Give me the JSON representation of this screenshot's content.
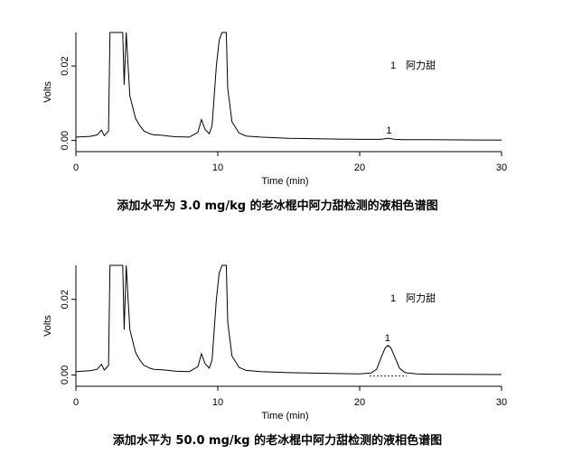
{
  "chart_data": [
    {
      "type": "line",
      "title": "",
      "caption": "添加水平为 3.0 mg/kg 的老冰棍中阿力甜检测的液相色谱图",
      "xlabel": "Time (min)",
      "ylabel": "Volts",
      "xlim": [
        0,
        30
      ],
      "ylim": [
        -0.003,
        0.029
      ],
      "xticks": [
        "0",
        "10",
        "20",
        "30"
      ],
      "yticks": [
        "0.00",
        "0.02"
      ],
      "legend": {
        "number": "1",
        "name": "阿力甜"
      },
      "peak_label": "1",
      "series": [
        {
          "x": [
            0,
            1,
            1.5,
            1.8,
            2.0,
            2.3,
            2.4,
            3.3,
            3.4,
            3.55,
            3.65,
            3.8,
            4.2,
            4.5,
            4.8,
            5.0,
            5.2,
            5.5,
            6.0,
            6.5,
            7.0,
            8.0,
            8.6,
            8.85,
            9.1,
            9.4,
            9.6,
            9.9,
            10.1,
            10.3,
            10.6,
            10.7,
            11.0,
            11.5,
            12.0,
            13.0,
            15.0,
            18.0,
            20.0,
            21.5,
            22.0,
            22.5,
            23.0,
            25.0,
            30.0
          ],
          "y": [
            0.0009,
            0.0011,
            0.0015,
            0.0028,
            0.0013,
            0.0025,
            0.029,
            0.029,
            0.015,
            0.029,
            0.022,
            0.012,
            0.006,
            0.004,
            0.0025,
            0.0022,
            0.0018,
            0.0015,
            0.0014,
            0.0012,
            0.001,
            0.0009,
            0.0022,
            0.0056,
            0.003,
            0.0018,
            0.004,
            0.02,
            0.027,
            0.029,
            0.029,
            0.014,
            0.005,
            0.002,
            0.0012,
            0.0009,
            0.0006,
            0.0004,
            0.0003,
            0.0003,
            0.0006,
            0.0003,
            0.0002,
            0.0002,
            0.0001
          ]
        }
      ],
      "annotations": [
        {
          "text": "1",
          "x": 22.0
        }
      ]
    },
    {
      "type": "line",
      "title": "",
      "caption": "添加水平为 50.0 mg/kg 的老冰棍中阿力甜检测的液相色谱图",
      "xlabel": "Time (min)",
      "ylabel": "Volts",
      "xlim": [
        0,
        30
      ],
      "ylim": [
        -0.003,
        0.029
      ],
      "xticks": [
        "0",
        "10",
        "20",
        "30"
      ],
      "yticks": [
        "0.00",
        "0.02"
      ],
      "legend": {
        "number": "1",
        "name": "阿力甜"
      },
      "peak_label": "1",
      "series": [
        {
          "x": [
            0,
            1,
            1.5,
            1.8,
            2.0,
            2.3,
            2.4,
            3.3,
            3.4,
            3.55,
            3.65,
            3.8,
            4.2,
            4.5,
            4.8,
            5.0,
            5.2,
            5.5,
            6.0,
            6.5,
            7.0,
            8.0,
            8.6,
            8.85,
            9.1,
            9.4,
            9.6,
            9.9,
            10.1,
            10.3,
            10.6,
            10.7,
            11.0,
            11.5,
            12.0,
            13.0,
            15.0,
            18.0,
            20.0,
            20.8,
            21.2,
            21.5,
            21.8,
            22.0,
            22.2,
            22.5,
            22.8,
            23.2,
            24.0,
            25.0,
            30.0
          ],
          "y": [
            0.0009,
            0.0011,
            0.0015,
            0.0028,
            0.0013,
            0.0025,
            0.029,
            0.029,
            0.012,
            0.029,
            0.022,
            0.012,
            0.006,
            0.004,
            0.0025,
            0.0022,
            0.0018,
            0.0015,
            0.0014,
            0.0012,
            0.001,
            0.0009,
            0.0022,
            0.0056,
            0.003,
            0.0018,
            0.004,
            0.02,
            0.027,
            0.029,
            0.029,
            0.014,
            0.005,
            0.002,
            0.0012,
            0.0009,
            0.0006,
            0.0004,
            0.0003,
            0.0005,
            0.0015,
            0.0045,
            0.0072,
            0.0078,
            0.0072,
            0.0045,
            0.0018,
            0.0006,
            0.0003,
            0.0002,
            0.0001
          ]
        }
      ],
      "baseline_segment": {
        "x": [
          20.7,
          23.3
        ],
        "y": [
          -0.0003,
          -0.0003
        ]
      },
      "annotations": [
        {
          "text": "1",
          "x": 21.9
        }
      ]
    }
  ]
}
